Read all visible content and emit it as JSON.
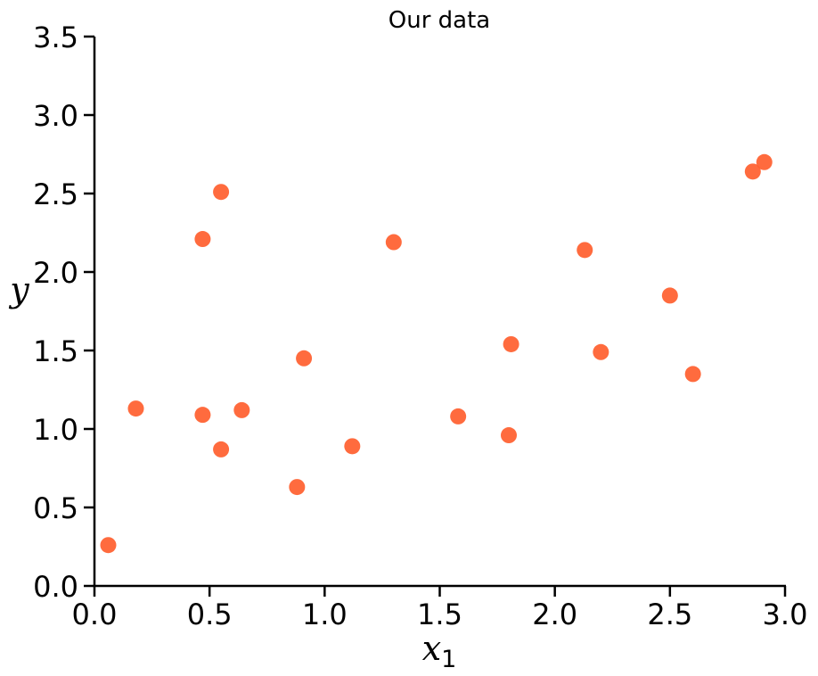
{
  "chart_data": {
    "type": "scatter",
    "title": "Our data",
    "xlabel": "x",
    "xlabel_subscript": "1",
    "ylabel": "y",
    "xlim": [
      0.0,
      3.0
    ],
    "ylim": [
      0.0,
      3.5
    ],
    "xticks": [
      "0.0",
      "0.5",
      "1.0",
      "1.5",
      "2.0",
      "2.5",
      "3.0"
    ],
    "yticks": [
      "0.0",
      "0.5",
      "1.0",
      "1.5",
      "2.0",
      "2.5",
      "3.0",
      "3.5"
    ],
    "grid": false,
    "marker_color": "#FF5E2E",
    "points": [
      {
        "x": 0.06,
        "y": 0.26
      },
      {
        "x": 0.18,
        "y": 1.13
      },
      {
        "x": 0.47,
        "y": 2.21
      },
      {
        "x": 0.47,
        "y": 1.09
      },
      {
        "x": 0.55,
        "y": 2.51
      },
      {
        "x": 0.55,
        "y": 0.87
      },
      {
        "x": 0.64,
        "y": 1.12
      },
      {
        "x": 0.88,
        "y": 0.63
      },
      {
        "x": 0.91,
        "y": 1.45
      },
      {
        "x": 1.12,
        "y": 0.89
      },
      {
        "x": 1.3,
        "y": 2.19
      },
      {
        "x": 1.58,
        "y": 1.08
      },
      {
        "x": 1.8,
        "y": 0.96
      },
      {
        "x": 1.81,
        "y": 1.54
      },
      {
        "x": 2.13,
        "y": 2.14
      },
      {
        "x": 2.2,
        "y": 1.49
      },
      {
        "x": 2.5,
        "y": 1.85
      },
      {
        "x": 2.6,
        "y": 1.35
      },
      {
        "x": 2.86,
        "y": 2.64
      },
      {
        "x": 2.91,
        "y": 2.7
      }
    ]
  }
}
